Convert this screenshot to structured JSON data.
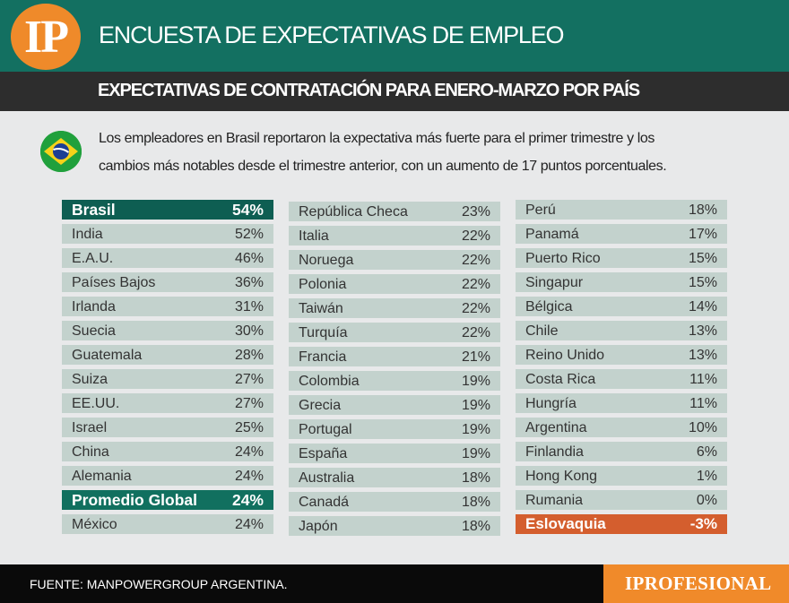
{
  "header": {
    "logo_text": "IP",
    "title": "ENCUESTA DE EXPECTATIVAS DE EMPLEO"
  },
  "subheader": {
    "title": "EXPECTATIVAS DE CONTRATACIÓN PARA ENERO-MARZO POR PAÍS"
  },
  "intro": {
    "line1": "Los empleadores en Brasil  reportaron la expectativa  más fuerte para el primer  trimestre y los",
    "line2": "cambios  más notables desde el  trimestre anterior, con un  aumento de 17 puntos  porcentuales."
  },
  "colors": {
    "header_bg": "#137061",
    "subheader_bg": "#2d2d2d",
    "row_bg": "#c3d2cd",
    "highlight_top": "#0e5e52",
    "highlight_average": "#11705f",
    "highlight_negative": "#d45e2e",
    "accent_orange": "#f08a2a"
  },
  "chart_data": {
    "type": "table",
    "columns": [
      [
        {
          "country": "Brasil",
          "value": "54%",
          "highlight": "top"
        },
        {
          "country": "India",
          "value": "52%"
        },
        {
          "country": "E.A.U.",
          "value": "46%"
        },
        {
          "country": "Países Bajos",
          "value": "36%"
        },
        {
          "country": "Irlanda",
          "value": "31%"
        },
        {
          "country": "Suecia",
          "value": "30%"
        },
        {
          "country": "Guatemala",
          "value": "28%"
        },
        {
          "country": "Suiza",
          "value": "27%"
        },
        {
          "country": "EE.UU.",
          "value": "27%"
        },
        {
          "country": "Israel",
          "value": "25%"
        },
        {
          "country": "China",
          "value": "24%"
        },
        {
          "country": "Alemania",
          "value": "24%"
        },
        {
          "country": "Promedio Global",
          "value": "24%",
          "highlight": "average"
        },
        {
          "country": "México",
          "value": "24%"
        }
      ],
      [
        {
          "country": "República Checa",
          "value": "23%"
        },
        {
          "country": "Italia",
          "value": "22%"
        },
        {
          "country": "Noruega",
          "value": "22%"
        },
        {
          "country": "Polonia",
          "value": "22%"
        },
        {
          "country": "Taiwán",
          "value": "22%"
        },
        {
          "country": "Turquía",
          "value": "22%"
        },
        {
          "country": "Francia",
          "value": "21%"
        },
        {
          "country": "Colombia",
          "value": "19%"
        },
        {
          "country": "Grecia",
          "value": "19%"
        },
        {
          "country": "Portugal",
          "value": "19%"
        },
        {
          "country": "España",
          "value": "19%"
        },
        {
          "country": "Australia",
          "value": "18%"
        },
        {
          "country": "Canadá",
          "value": "18%"
        },
        {
          "country": "Japón",
          "value": "18%"
        }
      ],
      [
        {
          "country": "Perú",
          "value": "18%"
        },
        {
          "country": "Panamá",
          "value": "17%"
        },
        {
          "country": "Puerto Rico",
          "value": "15%"
        },
        {
          "country": "Singapur",
          "value": "15%"
        },
        {
          "country": "Bélgica",
          "value": "14%"
        },
        {
          "country": "Chile",
          "value": "13%"
        },
        {
          "country": "Reino Unido",
          "value": "13%"
        },
        {
          "country": "Costa Rica",
          "value": "11%"
        },
        {
          "country": "Hungría",
          "value": "11%"
        },
        {
          "country": "Argentina",
          "value": "10%"
        },
        {
          "country": "Finlandia",
          "value": "6%"
        },
        {
          "country": "Hong Kong",
          "value": "1%"
        },
        {
          "country": "Rumania",
          "value": "0%"
        },
        {
          "country": "Eslovaquia",
          "value": "-3%",
          "highlight": "negative"
        }
      ]
    ]
  },
  "footer": {
    "source": "FUENTE: MANPOWERGROUP ARGENTINA.",
    "brand": "IPROFESIONAL"
  }
}
